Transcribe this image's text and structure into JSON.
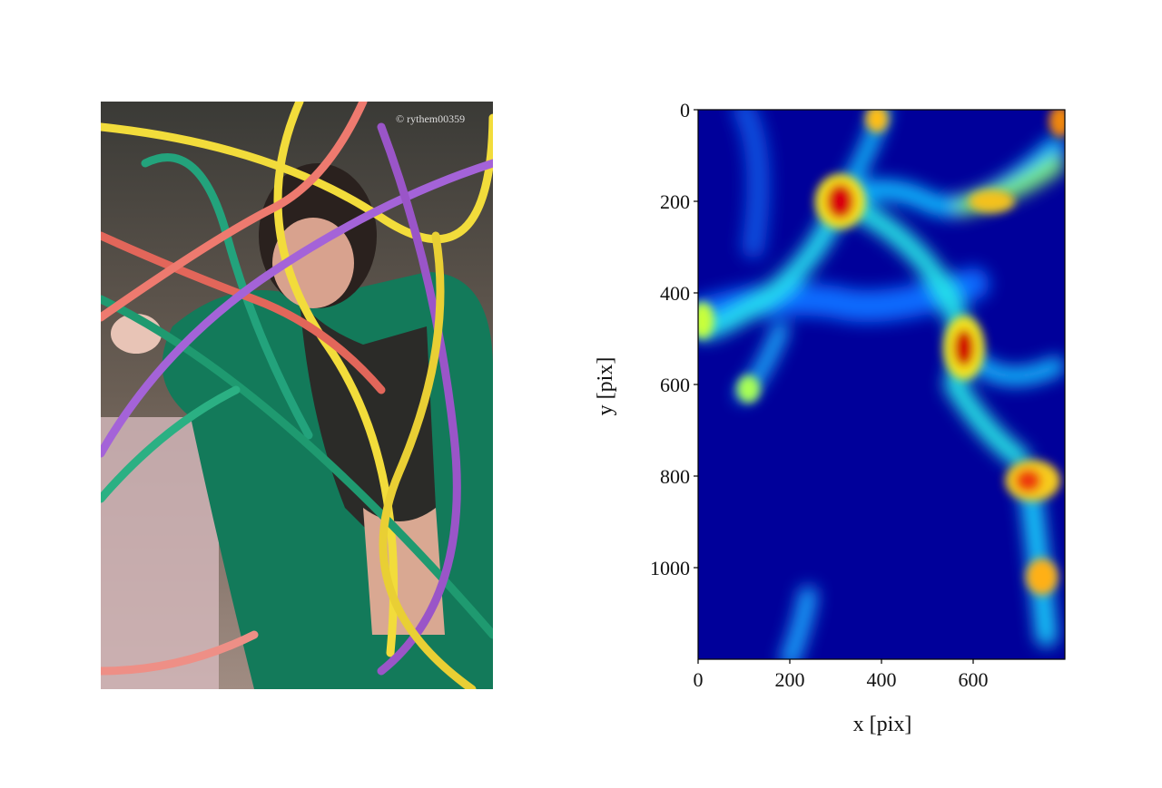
{
  "photo": {
    "watermark": "© rythem00359"
  },
  "chart_data": {
    "type": "heatmap",
    "xlabel": "x [pix]",
    "ylabel": "y [pix]",
    "xlim": [
      0,
      800
    ],
    "ylim": [
      0,
      1200
    ],
    "y_inverted": true,
    "xticks": [
      0,
      200,
      400,
      600
    ],
    "yticks": [
      0,
      200,
      400,
      600,
      800,
      1000
    ]
  }
}
